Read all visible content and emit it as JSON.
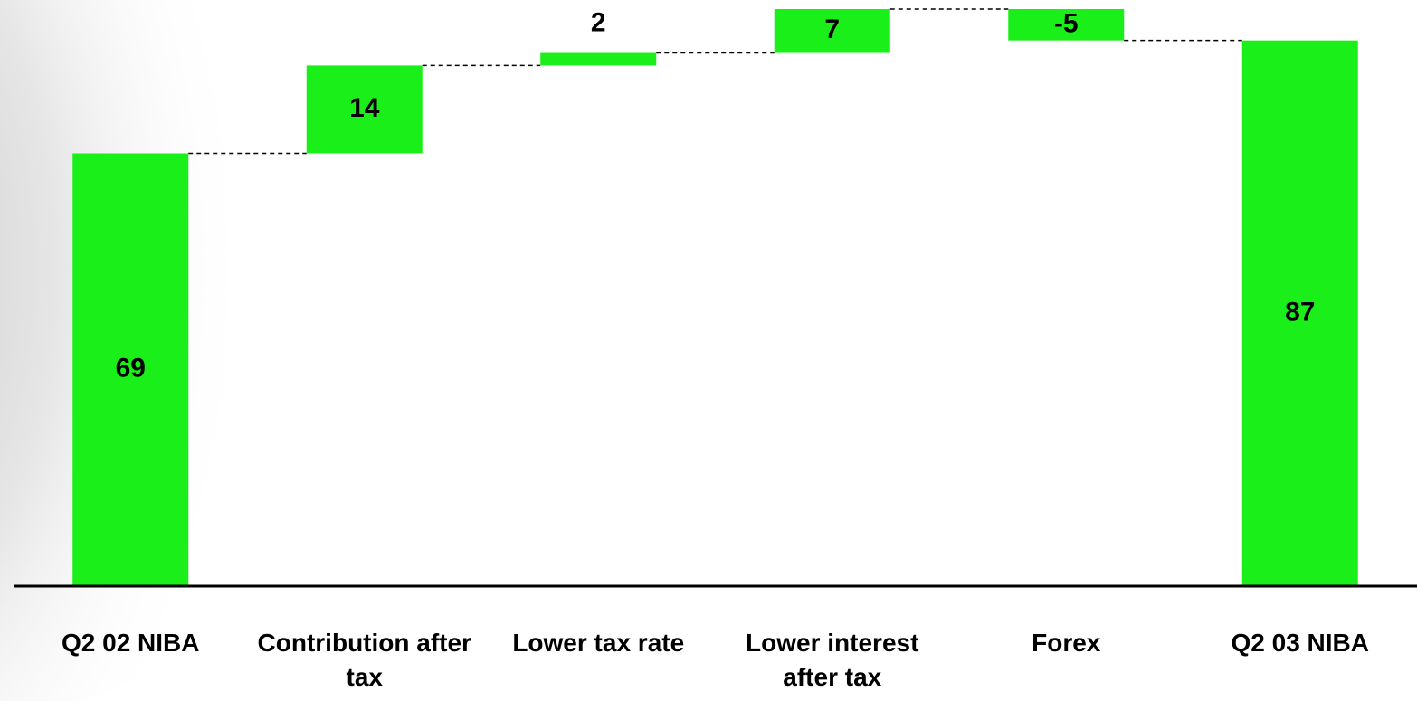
{
  "chart_data": {
    "type": "waterfall",
    "categories": [
      "Q2 02 NIBA",
      "Contribution after tax",
      "Lower tax rate",
      "Lower interest after tax",
      "Forex",
      "Q2 03 NIBA"
    ],
    "values": [
      69,
      14,
      2,
      7,
      -5,
      87
    ],
    "color": "#1aef1a"
  }
}
